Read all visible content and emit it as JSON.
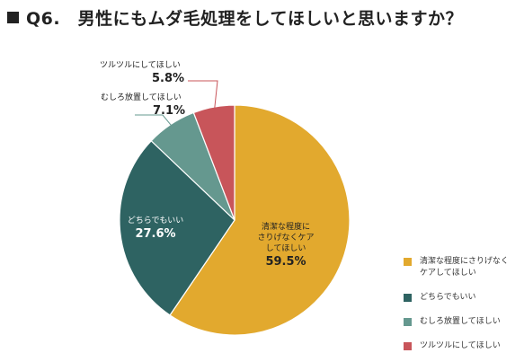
{
  "title": "Q6.　男性にもムダ毛処理をしてほしいと思いますか？",
  "chart_data": {
    "type": "pie",
    "title": "Q6.　男性にもムダ毛処理をしてほしいと思いますか？",
    "start": "12 o'clock",
    "direction": "clockwise",
    "legend_position": "bottom-right",
    "slices": [
      {
        "label": "清潔な程度にさりげなくケアしてほしい",
        "chart_label_lines": [
          "清潔な程度に",
          "さりげなくケア",
          "してほしい"
        ],
        "value": 59.5,
        "value_label": "59.5%",
        "color": "#E2A92E",
        "label_color": "#222222",
        "label_placement": "inside"
      },
      {
        "label": "どちらでもいい",
        "chart_label_lines": [
          "どちらでもいい"
        ],
        "value": 27.6,
        "value_label": "27.6%",
        "color": "#2E6362",
        "label_color": "#ffffff",
        "label_placement": "inside"
      },
      {
        "label": "むしろ放置してほしい",
        "chart_label_lines": [
          "むしろ放置してほしい"
        ],
        "value": 7.1,
        "value_label": "7.1%",
        "color": "#65988F",
        "label_color": "#222222",
        "label_placement": "outside"
      },
      {
        "label": "ツルツルにしてほしい",
        "chart_label_lines": [
          "ツルツルにしてほしい"
        ],
        "value": 5.8,
        "value_label": "5.8%",
        "color": "#C8555A",
        "label_color": "#222222",
        "label_placement": "outside"
      }
    ],
    "legend": [
      {
        "text_lines": [
          "清潔な程度にさりげなく",
          "ケアしてほしい"
        ],
        "color": "#E2A92E"
      },
      {
        "text_lines": [
          "どちらでもいい"
        ],
        "color": "#2E6362"
      },
      {
        "text_lines": [
          "むしろ放置してほしい"
        ],
        "color": "#65988F"
      },
      {
        "text_lines": [
          "ツルツルにしてほしい"
        ],
        "color": "#C8555A"
      }
    ]
  }
}
